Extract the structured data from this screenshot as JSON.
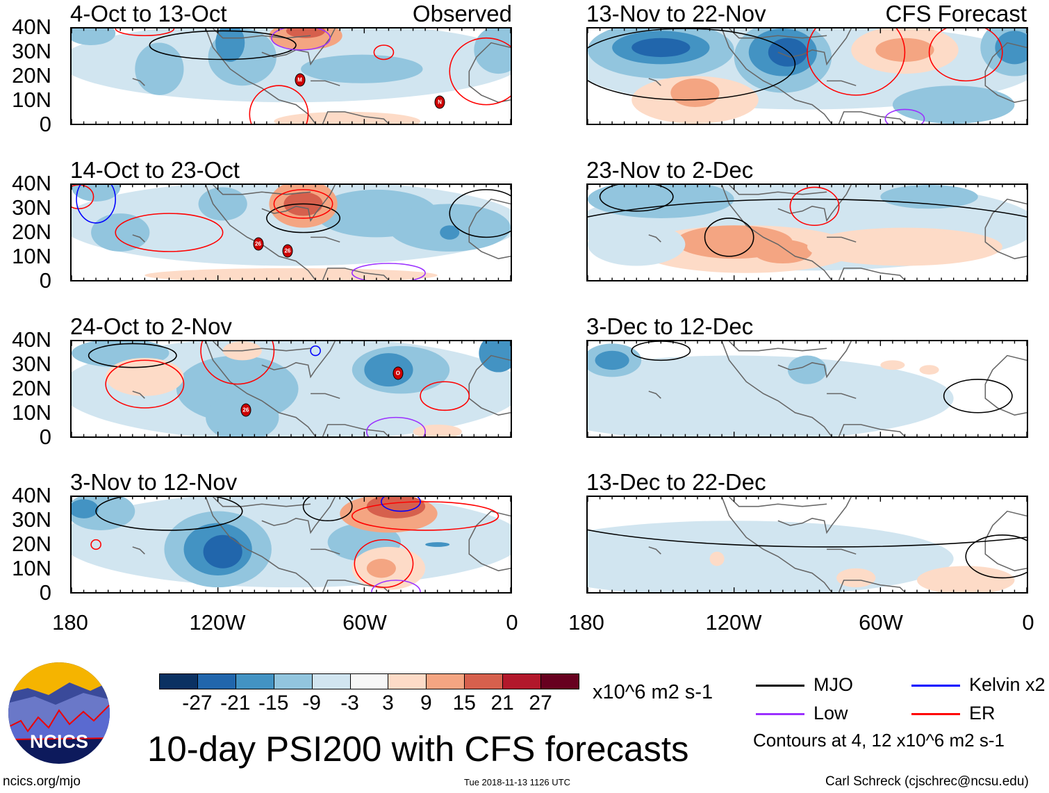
{
  "title": "10-day PSI200 with CFS forecasts",
  "left_header": "Observed",
  "right_header": "CFS Forecast",
  "panels": [
    {
      "title": "4-Oct to 13-Oct",
      "storms": [
        "M",
        "N"
      ]
    },
    {
      "title": "14-Oct to 23-Oct",
      "storms": [
        "26",
        "26"
      ]
    },
    {
      "title": "24-Oct to 2-Nov",
      "storms": [
        "26",
        "O"
      ]
    },
    {
      "title": "3-Nov to 12-Nov",
      "storms": []
    },
    {
      "title": "13-Nov to 22-Nov",
      "storms": []
    },
    {
      "title": "23-Nov to 2-Dec",
      "storms": []
    },
    {
      "title": "3-Dec to 12-Dec",
      "storms": []
    },
    {
      "title": "13-Dec to 22-Dec",
      "storms": []
    }
  ],
  "y_labels": [
    "40N",
    "30N",
    "20N",
    "10N",
    "0"
  ],
  "x_labels": [
    "180",
    "120W",
    "60W",
    "0"
  ],
  "colorbar": {
    "colors": [
      "#0b3162",
      "#2166ac",
      "#4393c3",
      "#92c5de",
      "#d1e5f0",
      "#f7f7f7",
      "#fddbc7",
      "#f4a582",
      "#d6604d",
      "#b2182b",
      "#67001f"
    ],
    "labels": [
      "-27",
      "-21",
      "-15",
      "-9",
      "-3",
      "3",
      "9",
      "15",
      "21",
      "27"
    ],
    "units": "x10^6 m2 s-1"
  },
  "legend": {
    "items": [
      {
        "label": "MJO",
        "color": "#000000"
      },
      {
        "label": "Kelvin x2",
        "color": "#0000ff"
      },
      {
        "label": "Low",
        "color": "#9b30ff"
      },
      {
        "label": "ER",
        "color": "#ff0000"
      }
    ],
    "note": "Contours at 4, 12 x10^6 m2 s-1"
  },
  "logo_text": "NCICS",
  "footer": {
    "url": "ncics.org/mjo",
    "timestamp": "Tue 2018-11-13 1126 UTC",
    "author": "Carl Schreck (cjschrec@ncsu.edu)"
  }
}
